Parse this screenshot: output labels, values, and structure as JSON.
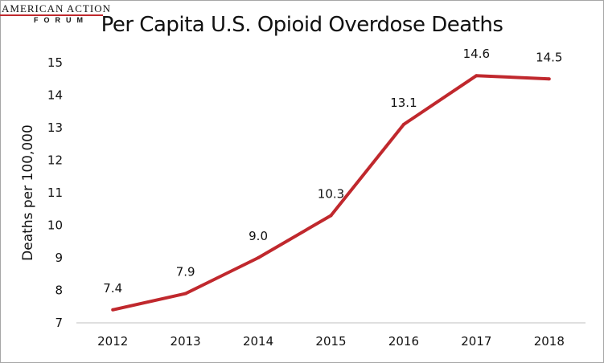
{
  "logo": {
    "line1": "AMERICAN ACTION",
    "line2": "FORUM",
    "accent": "#c0282d"
  },
  "chart_data": {
    "type": "line",
    "title": "Per Capita U.S. Opioid Overdose Deaths",
    "xlabel": "",
    "ylabel": "Deaths per 100,000",
    "categories": [
      "2012",
      "2013",
      "2014",
      "2015",
      "2016",
      "2017",
      "2018"
    ],
    "series": [
      {
        "values": [
          7.4,
          7.9,
          9.0,
          10.3,
          13.1,
          14.6,
          14.5
        ],
        "labels": [
          "7.4",
          "7.9",
          "9.0",
          "10.3",
          "13.1",
          "14.6",
          "14.5"
        ],
        "color": "#c0282d"
      }
    ],
    "ylim": [
      7,
      15
    ],
    "yticks": [
      7,
      8,
      9,
      10,
      11,
      12,
      13,
      14,
      15
    ],
    "grid": false,
    "legend": "none"
  }
}
